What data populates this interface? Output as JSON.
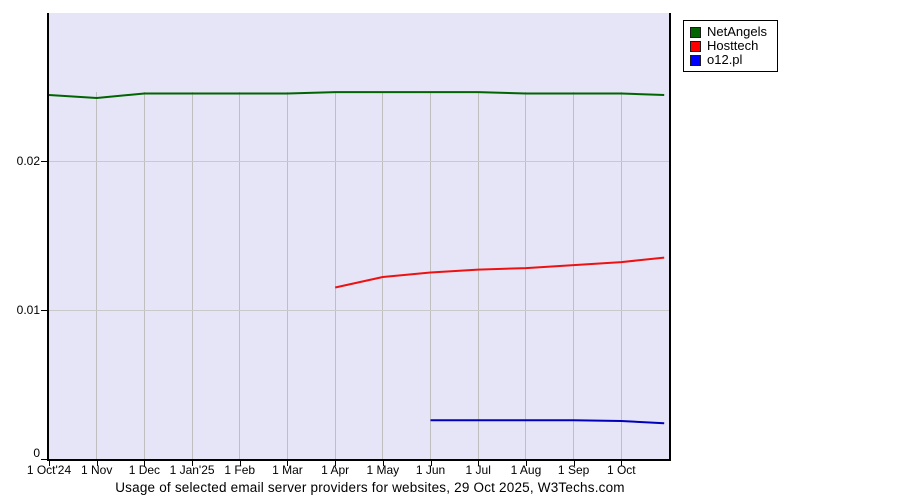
{
  "title": "Usage of selected email server providers for websites, 29 Oct 2025, W3Techs.com",
  "legend": {
    "items": [
      {
        "label": "NetAngels",
        "color": "#006400"
      },
      {
        "label": "Hosttech",
        "color": "#ff0000"
      },
      {
        "label": "o12.pl",
        "color": "#0000ff"
      }
    ]
  },
  "y_axis": {
    "ticks": [
      {
        "label": "0.02",
        "value": 0.02
      },
      {
        "label": "0.01",
        "value": 0.01
      },
      {
        "label": "0",
        "value": 0
      }
    ]
  },
  "x_axis": {
    "ticks": [
      {
        "label": "1 Oct'24",
        "month": 0
      },
      {
        "label": "1 Nov",
        "month": 1
      },
      {
        "label": "1 Dec",
        "month": 2
      },
      {
        "label": "1 Jan'25",
        "month": 3
      },
      {
        "label": "1 Feb",
        "month": 4
      },
      {
        "label": "1 Mar",
        "month": 5
      },
      {
        "label": "1 Apr",
        "month": 6
      },
      {
        "label": "1 May",
        "month": 7
      },
      {
        "label": "1 Jun",
        "month": 8
      },
      {
        "label": "1 Jul",
        "month": 9
      },
      {
        "label": "1 Aug",
        "month": 10
      },
      {
        "label": "1 Sep",
        "month": 11
      },
      {
        "label": "1 Oct",
        "month": 12
      }
    ]
  },
  "chart_data": {
    "type": "line",
    "title": "Usage of selected email server providers for websites, 29 Oct 2025, W3Techs.com",
    "x_unit": "months from 1 Oct 2024 to 29 Oct 2025",
    "x_tick_labels": [
      "1 Oct'24",
      "1 Nov",
      "1 Dec",
      "1 Jan'25",
      "1 Feb",
      "1 Mar",
      "1 Apr",
      "1 May",
      "1 Jun",
      "1 Jul",
      "1 Aug",
      "1 Sep",
      "1 Oct"
    ],
    "x_intervals": 13,
    "ylim": [
      0,
      0.0299
    ],
    "y_ticks": [
      0,
      0.01,
      0.02
    ],
    "grid": true,
    "legend_position": "top-right",
    "plot_background": "#e5e5f7",
    "series": [
      {
        "name": "NetAngels",
        "color": "#006400",
        "x": [
          0,
          1,
          2,
          3,
          4,
          5,
          6,
          7,
          8,
          9,
          10,
          11,
          12,
          12.9
        ],
        "values": [
          0.0244,
          0.0242,
          0.0245,
          0.0245,
          0.0245,
          0.0245,
          0.0246,
          0.0246,
          0.0246,
          0.0246,
          0.0245,
          0.0245,
          0.0245,
          0.0244
        ]
      },
      {
        "name": "Hosttech",
        "color": "#ee1111",
        "x": [
          6,
          7,
          8,
          9,
          10,
          11,
          12,
          12.9
        ],
        "values": [
          0.0115,
          0.0122,
          0.0125,
          0.0127,
          0.0128,
          0.013,
          0.0132,
          0.0135
        ]
      },
      {
        "name": "o12.pl",
        "color": "#0000bb",
        "x": [
          8,
          9,
          10,
          11,
          12,
          12.9
        ],
        "values": [
          0.0026,
          0.0026,
          0.0026,
          0.0026,
          0.00255,
          0.0024
        ]
      }
    ]
  }
}
